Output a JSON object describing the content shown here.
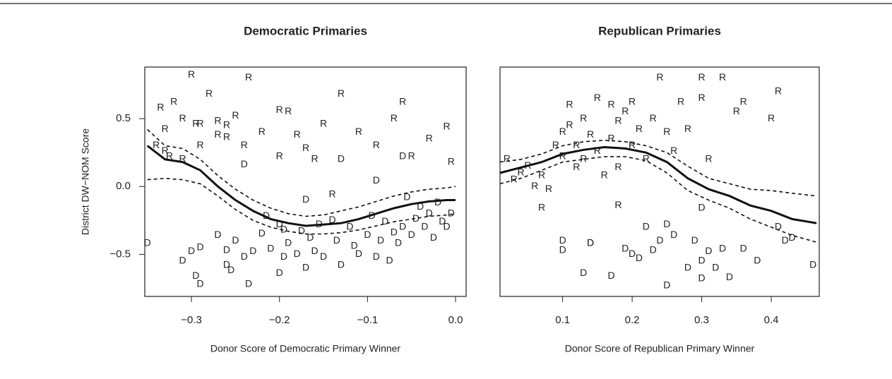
{
  "chart_data": [
    {
      "type": "scatter",
      "title": "Democratic Primaries",
      "xlabel": "Donor Score of Democratic Primary Winner",
      "ylabel": "District DW−NOM Score",
      "xlim": [
        -0.353,
        0.012
      ],
      "ylim": [
        -0.81,
        0.88
      ],
      "xticks": [
        {
          "value": -0.3,
          "label": "−0.3"
        },
        {
          "value": -0.2,
          "label": "−0.2"
        },
        {
          "value": -0.1,
          "label": "−0.1"
        },
        {
          "value": 0,
          "label": "0.0"
        }
      ],
      "yticks": [
        {
          "value": -0.5,
          "label": "−0.5"
        },
        {
          "value": 0,
          "label": "0.0"
        },
        0.5
      ],
      "series": [
        {
          "name": "R",
          "color": "#a8a8a8",
          "x": [
            -0.335,
            -0.33,
            -0.325,
            -0.32,
            -0.31,
            -0.3,
            -0.295,
            -0.29,
            -0.28,
            -0.27,
            -0.26,
            -0.25,
            -0.24,
            -0.235,
            -0.22,
            -0.2,
            -0.19,
            -0.18,
            -0.16,
            -0.15,
            -0.13,
            -0.11,
            -0.09,
            -0.07,
            -0.06,
            -0.05,
            -0.03,
            -0.01,
            -0.005,
            -0.34,
            -0.33,
            -0.31,
            -0.29,
            -0.27,
            -0.26,
            -0.2,
            -0.17,
            -0.14
          ],
          "values": [
            0.58,
            0.42,
            0.22,
            0.62,
            0.5,
            0.82,
            0.46,
            0.3,
            0.68,
            0.48,
            0.36,
            0.52,
            0.3,
            0.8,
            0.4,
            0.56,
            0.55,
            0.38,
            0.2,
            0.46,
            0.68,
            0.4,
            0.3,
            0.5,
            0.62,
            0.22,
            0.35,
            0.44,
            0.18,
            0.3,
            0.26,
            0.2,
            0.46,
            0.38,
            0.45,
            0.22,
            0.28,
            -0.06
          ]
        },
        {
          "name": "D",
          "color": "#2b2b2b",
          "x": [
            -0.35,
            -0.31,
            -0.3,
            -0.295,
            -0.29,
            -0.29,
            -0.27,
            -0.26,
            -0.26,
            -0.255,
            -0.25,
            -0.24,
            -0.235,
            -0.23,
            -0.22,
            -0.21,
            -0.2,
            -0.2,
            -0.195,
            -0.19,
            -0.18,
            -0.175,
            -0.17,
            -0.165,
            -0.16,
            -0.155,
            -0.15,
            -0.14,
            -0.135,
            -0.13,
            -0.12,
            -0.115,
            -0.11,
            -0.1,
            -0.095,
            -0.09,
            -0.085,
            -0.08,
            -0.075,
            -0.07,
            -0.065,
            -0.06,
            -0.055,
            -0.05,
            -0.045,
            -0.04,
            -0.035,
            -0.03,
            -0.025,
            -0.02,
            -0.015,
            -0.01,
            -0.005,
            -0.24,
            -0.13,
            -0.09,
            -0.06,
            -0.215,
            -0.195,
            -0.17
          ],
          "values": [
            -0.42,
            -0.55,
            -0.48,
            -0.66,
            -0.72,
            -0.45,
            -0.36,
            -0.47,
            -0.58,
            -0.62,
            -0.4,
            -0.52,
            -0.72,
            -0.48,
            -0.35,
            -0.46,
            -0.28,
            -0.64,
            -0.52,
            -0.42,
            -0.5,
            -0.33,
            -0.6,
            -0.38,
            -0.48,
            -0.28,
            -0.52,
            -0.25,
            -0.4,
            -0.58,
            -0.3,
            -0.44,
            -0.5,
            -0.36,
            -0.22,
            -0.52,
            -0.4,
            -0.26,
            -0.55,
            -0.34,
            -0.42,
            -0.3,
            -0.08,
            -0.36,
            -0.24,
            -0.15,
            -0.3,
            -0.2,
            -0.38,
            -0.12,
            -0.26,
            -0.3,
            -0.2,
            0.16,
            0.2,
            0.04,
            0.22,
            -0.22,
            -0.32,
            -0.1
          ]
        }
      ],
      "fit": {
        "x": [
          -0.35,
          -0.33,
          -0.31,
          -0.29,
          -0.27,
          -0.25,
          -0.23,
          -0.21,
          -0.19,
          -0.17,
          -0.15,
          -0.13,
          -0.11,
          -0.09,
          -0.07,
          -0.05,
          -0.03,
          -0.01,
          0
        ],
        "values": [
          0.3,
          0.2,
          0.18,
          0.12,
          0.0,
          -0.1,
          -0.18,
          -0.24,
          -0.27,
          -0.29,
          -0.28,
          -0.27,
          -0.24,
          -0.2,
          -0.16,
          -0.13,
          -0.11,
          -0.1,
          -0.1
        ],
        "upper": [
          0.42,
          0.3,
          0.28,
          0.2,
          0.08,
          -0.02,
          -0.1,
          -0.16,
          -0.2,
          -0.22,
          -0.21,
          -0.18,
          -0.15,
          -0.11,
          -0.07,
          -0.04,
          -0.02,
          -0.01,
          0
        ],
        "lower": [
          0.05,
          0.06,
          0.05,
          0.02,
          -0.07,
          -0.17,
          -0.25,
          -0.3,
          -0.33,
          -0.35,
          -0.35,
          -0.34,
          -0.32,
          -0.29,
          -0.26,
          -0.24,
          -0.22,
          -0.21,
          -0.2
        ]
      }
    },
    {
      "type": "scatter",
      "title": "Republican Primaries",
      "xlabel": "Donor Score of Republican Primary Winner",
      "xlim": [
        0.01,
        0.469
      ],
      "ylim": [
        -0.81,
        0.88
      ],
      "xticks": [
        0.1,
        0.2,
        0.3,
        0.4
      ],
      "series": [
        {
          "name": "R",
          "color": "#2b2b2b",
          "x": [
            0.02,
            0.03,
            0.04,
            0.05,
            0.06,
            0.07,
            0.08,
            0.09,
            0.1,
            0.1,
            0.11,
            0.11,
            0.12,
            0.12,
            0.13,
            0.13,
            0.14,
            0.15,
            0.15,
            0.16,
            0.17,
            0.17,
            0.18,
            0.18,
            0.19,
            0.2,
            0.2,
            0.21,
            0.22,
            0.23,
            0.24,
            0.25,
            0.26,
            0.27,
            0.28,
            0.3,
            0.3,
            0.31,
            0.33,
            0.35,
            0.36,
            0.41,
            0.4,
            0.07,
            0.18
          ],
          "values": [
            0.2,
            0.05,
            0.1,
            0.15,
            0.0,
            0.08,
            -0.02,
            0.3,
            0.4,
            0.22,
            0.45,
            0.6,
            0.3,
            0.14,
            0.5,
            0.2,
            0.38,
            0.65,
            0.26,
            0.08,
            0.6,
            0.35,
            0.48,
            0.14,
            0.55,
            0.3,
            0.62,
            0.42,
            0.2,
            0.5,
            0.8,
            0.4,
            0.26,
            0.62,
            0.42,
            0.8,
            0.65,
            0.2,
            0.8,
            0.55,
            0.62,
            0.7,
            0.5,
            -0.16,
            -0.14
          ]
        },
        {
          "name": "D",
          "color": "#a8a8a8",
          "x": [
            0.1,
            0.1,
            0.13,
            0.14,
            0.14,
            0.17,
            0.19,
            0.2,
            0.21,
            0.22,
            0.23,
            0.24,
            0.25,
            0.26,
            0.28,
            0.29,
            0.3,
            0.3,
            0.31,
            0.32,
            0.33,
            0.34,
            0.36,
            0.38,
            0.41,
            0.42,
            0.43,
            0.46,
            0.3,
            0.25
          ],
          "values": [
            -0.4,
            -0.47,
            -0.64,
            -0.42,
            -0.42,
            -0.66,
            -0.46,
            -0.5,
            -0.53,
            -0.3,
            -0.47,
            -0.4,
            -0.28,
            -0.36,
            -0.6,
            -0.4,
            -0.55,
            -0.68,
            -0.48,
            -0.6,
            -0.46,
            -0.67,
            -0.46,
            -0.55,
            -0.3,
            -0.4,
            -0.38,
            -0.58,
            -0.16,
            -0.73
          ]
        }
      ],
      "fit": {
        "x": [
          0.01,
          0.04,
          0.07,
          0.1,
          0.13,
          0.16,
          0.19,
          0.22,
          0.25,
          0.28,
          0.31,
          0.34,
          0.37,
          0.4,
          0.43,
          0.465
        ],
        "values": [
          0.1,
          0.14,
          0.18,
          0.24,
          0.27,
          0.29,
          0.28,
          0.25,
          0.18,
          0.06,
          -0.02,
          -0.07,
          -0.14,
          -0.18,
          -0.24,
          -0.27
        ],
        "upper": [
          0.18,
          0.2,
          0.24,
          0.3,
          0.33,
          0.34,
          0.33,
          0.3,
          0.25,
          0.15,
          0.06,
          0.02,
          -0.02,
          -0.03,
          -0.05,
          -0.07
        ],
        "lower": [
          0.02,
          0.06,
          0.12,
          0.18,
          0.2,
          0.22,
          0.22,
          0.19,
          0.1,
          -0.03,
          -0.1,
          -0.16,
          -0.24,
          -0.3,
          -0.36,
          -0.41
        ]
      }
    }
  ]
}
